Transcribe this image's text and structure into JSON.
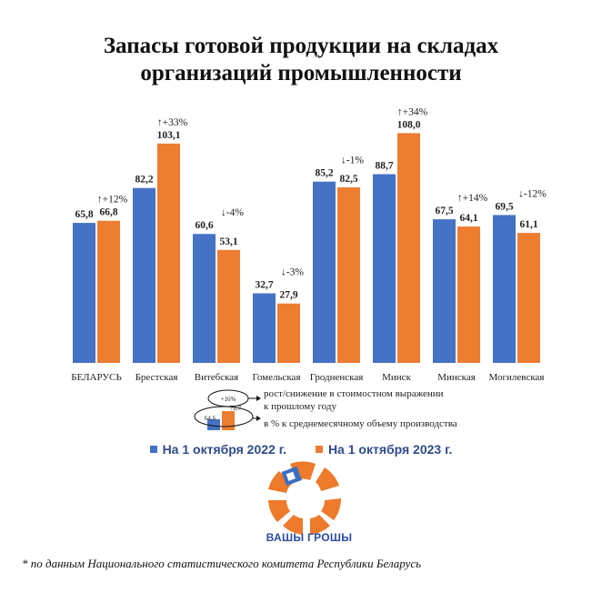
{
  "title_lines": [
    "Запасы готовой продукции на складах",
    "организаций промышленности"
  ],
  "chart_data": {
    "type": "bar",
    "title": "Запасы готовой продукции на складах организаций промышленности",
    "categories": [
      "БЕЛАРУСЬ",
      "Брестская",
      "Витебская",
      "Гомельская",
      "Гродненская",
      "Минск",
      "Минская",
      "Могилевская"
    ],
    "series": [
      {
        "name": "На 1 октября 2022 г.",
        "values": [
          65.8,
          82.2,
          60.6,
          32.7,
          85.2,
          88.7,
          67.5,
          69.5
        ],
        "labels": [
          "65,8",
          "82,2",
          "60,6",
          "32,7",
          "85,2",
          "88,7",
          "67,5",
          "69,5"
        ]
      },
      {
        "name": "На 1 октября 2023 г.",
        "values": [
          66.8,
          103.1,
          53.1,
          27.9,
          82.5,
          108.0,
          64.1,
          61.1
        ],
        "labels": [
          "66,8",
          "103,1",
          "53,1",
          "27,9",
          "82,5",
          "108,0",
          "64,1",
          "61,1"
        ]
      }
    ],
    "changes": [
      "↑+12%",
      "↑+33%",
      "↓-4%",
      "↓-3%",
      "↓-1%",
      "↑+34%",
      "↑+14%",
      "↓-12%"
    ],
    "ylim": [
      0,
      115
    ],
    "grid": false,
    "legend": "bottom",
    "ylabel": "",
    "xlabel": ""
  },
  "colors": {
    "series_2022": "#4472c4",
    "series_2023": "#ed7d31"
  },
  "annotation": {
    "sample_change": "+16%",
    "sample_v1": "64,6",
    "sample_v2": "72,7",
    "note_change_line1": "рост/снижение в стоимостном выражении",
    "note_change_line2": "к прошлому году",
    "note_percent": "в % к среднемесячному объему производства"
  },
  "logo_text": "ВАШЫ ГРОШЫ",
  "footer": "* по данным Национального статистического комитета Республики Беларусь"
}
